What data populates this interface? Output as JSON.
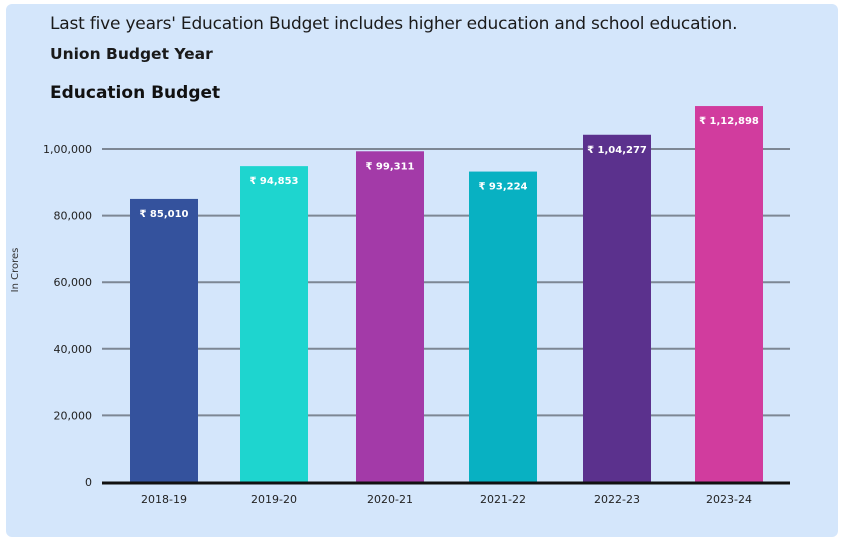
{
  "caption": "Last five years' Education Budget includes higher education and school education.",
  "subtitle": "Union Budget Year",
  "chart_data": {
    "type": "bar",
    "title": "Education Budget",
    "xlabel": "",
    "ylabel": "In Crores",
    "ylim": [
      0,
      112898
    ],
    "yticks": [
      0,
      20000,
      40000,
      60000,
      80000,
      100000
    ],
    "ytick_labels": [
      "0",
      "20,000",
      "40,000",
      "60,000",
      "80,000",
      "1,00,000"
    ],
    "grid": true,
    "categories": [
      "2018-19",
      "2019-20",
      "2020-21",
      "2021-22",
      "2022-23",
      "2023-24"
    ],
    "values": [
      85010,
      94853,
      99311,
      93224,
      104277,
      112898
    ],
    "data_labels": [
      "₹ 85,010",
      "₹ 94,853",
      "₹ 99,311",
      "₹ 93,224",
      "₹ 1,04,277",
      "₹ 1,12,898"
    ],
    "colors": [
      "#34529d",
      "#1ed5cf",
      "#a33aa8",
      "#08b1c2",
      "#5b318d",
      "#d13c9e"
    ]
  }
}
